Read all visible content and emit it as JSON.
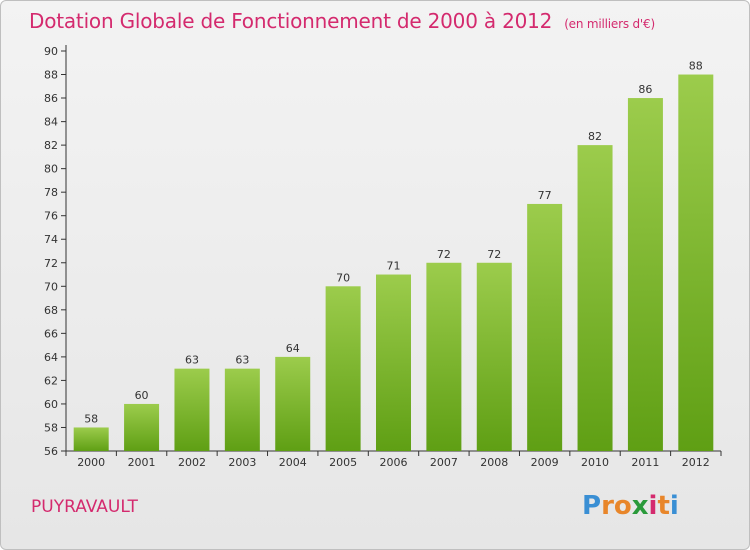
{
  "header": {
    "title": "Dotation Globale de Fonctionnement de 2000 à 2012",
    "unit_note": "(en milliers d'€)"
  },
  "footer": {
    "commune": "PUYRAVAULT",
    "logo_text": "Proxiti",
    "logo_colors": [
      "#3a8fd4",
      "#e8862a",
      "#e8862a",
      "#2a9a3a",
      "#d42a6e",
      "#e8862a",
      "#3a8fd4"
    ]
  },
  "colors": {
    "title": "#d42a6e",
    "bar_top": "#9ccc4c",
    "bar_bottom": "#5f9f14"
  },
  "chart_data": {
    "type": "bar",
    "title": "Dotation Globale de Fonctionnement de 2000 à 2012",
    "xlabel": "",
    "ylabel": "",
    "categories": [
      "2000",
      "2001",
      "2002",
      "2003",
      "2004",
      "2005",
      "2006",
      "2007",
      "2008",
      "2009",
      "2010",
      "2011",
      "2012"
    ],
    "values": [
      58,
      60,
      63,
      63,
      64,
      70,
      71,
      72,
      72,
      77,
      82,
      86,
      88
    ],
    "ylim": [
      56,
      90
    ],
    "yticks": [
      56,
      58,
      60,
      62,
      64,
      66,
      68,
      70,
      72,
      74,
      76,
      78,
      80,
      82,
      84,
      86,
      88,
      90
    ],
    "grid": false,
    "legend": "none"
  }
}
